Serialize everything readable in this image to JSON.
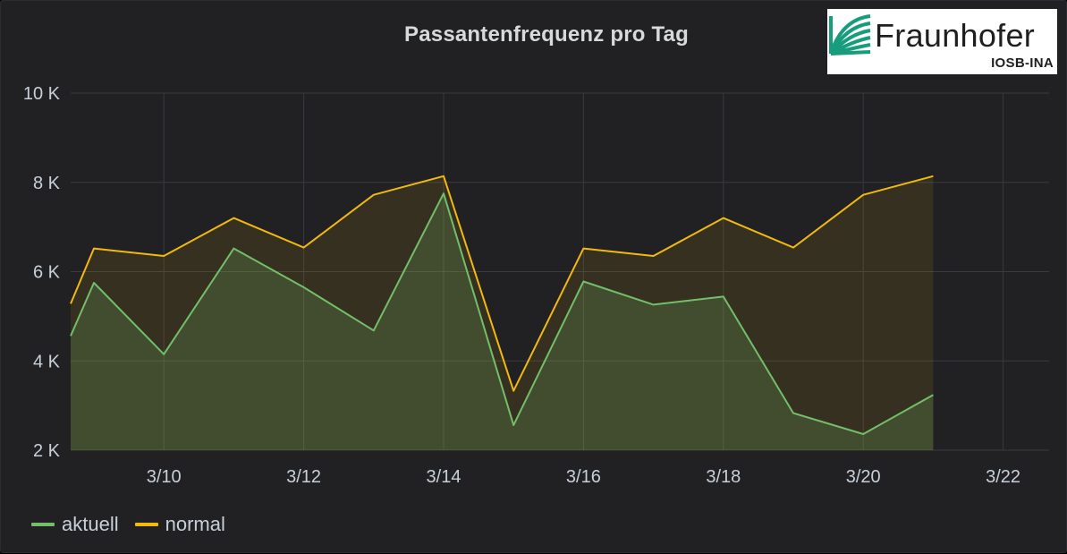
{
  "chart_data": {
    "type": "area",
    "title": "Passantenfrequenz pro Tag",
    "xlabel": "",
    "ylabel": "",
    "ylim": [
      2000,
      10000
    ],
    "x_tick_labels": [
      "3/10",
      "3/12",
      "3/14",
      "3/16",
      "3/18",
      "3/20",
      "3/22"
    ],
    "y_tick_labels": [
      "2 K",
      "4 K",
      "6 K",
      "8 K",
      "10 K"
    ],
    "y_ticks": [
      2000,
      4000,
      6000,
      8000,
      10000
    ],
    "grid": true,
    "legend_position": "bottom-left",
    "x": [
      "3/9",
      "3/10",
      "3/11",
      "3/12",
      "3/13",
      "3/14",
      "3/15",
      "3/16",
      "3/17",
      "3/18",
      "3/19",
      "3/20",
      "3/21"
    ],
    "series": [
      {
        "name": "aktuell",
        "color": "#73bf69",
        "values": [
          5750,
          4150,
          6520,
          5650,
          4680,
          7750,
          2560,
          5780,
          5260,
          5440,
          2830,
          2360,
          3240
        ],
        "start_value": 4560
      },
      {
        "name": "normal",
        "color": "#f2b90e",
        "values": [
          6520,
          6350,
          7200,
          6540,
          7720,
          8140,
          3330,
          6520,
          6350,
          7200,
          6540,
          7720,
          8140
        ],
        "start_value": 5280
      }
    ]
  },
  "logo": {
    "word": "Fraunhofer",
    "sub": "IOSB-INA"
  }
}
